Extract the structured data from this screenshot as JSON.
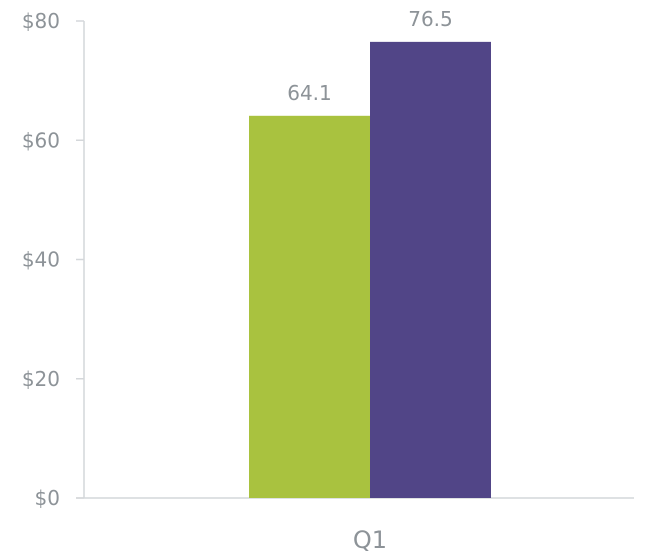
{
  "colors": {
    "series_1": "#a9c23f",
    "series_2": "#514587",
    "text": "#8d9398",
    "axis": "#d4d7da"
  },
  "chart_data": {
    "type": "bar",
    "title": "",
    "xlabel": "",
    "ylabel": "",
    "categories": [
      "Q1"
    ],
    "series": [
      {
        "values": [
          64.1
        ],
        "data_labels": [
          "64.1"
        ],
        "color": "#a9c23f"
      },
      {
        "values": [
          76.5
        ],
        "data_labels": [
          "76.5"
        ],
        "color": "#514587"
      }
    ],
    "ylim": [
      0,
      80
    ],
    "yticks": [
      0,
      20,
      40,
      60,
      80
    ],
    "ytick_labels": [
      "$0",
      "$20",
      "$40",
      "$60",
      "$80"
    ],
    "grid": false,
    "legend": "none"
  }
}
